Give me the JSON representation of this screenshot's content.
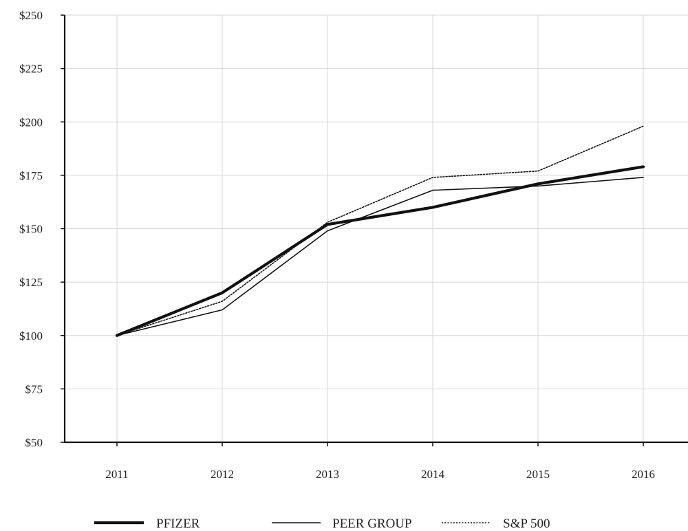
{
  "chart_data": {
    "type": "line",
    "title": "",
    "xlabel": "",
    "ylabel": "",
    "categories": [
      "2011",
      "2012",
      "2013",
      "2014",
      "2015",
      "2016"
    ],
    "ylim": [
      50,
      250
    ],
    "yticks": [
      50,
      75,
      100,
      125,
      150,
      175,
      200,
      225,
      250
    ],
    "ytick_labels": [
      "$50",
      "$75",
      "$100",
      "$125",
      "$150",
      "$175",
      "$200",
      "$225",
      "$250"
    ],
    "grid": true,
    "legend_position": "bottom",
    "series": [
      {
        "name": "PFIZER",
        "values": [
          100,
          120,
          152,
          160,
          171,
          179
        ],
        "color": "#111111",
        "style": "solid-thick"
      },
      {
        "name": "PEER GROUP",
        "values": [
          100,
          112,
          149,
          168,
          170,
          174
        ],
        "color": "#111111",
        "style": "solid-thin"
      },
      {
        "name": "S&P 500",
        "values": [
          100,
          116,
          153,
          174,
          177,
          198
        ],
        "color": "#111111",
        "style": "dotted"
      }
    ]
  }
}
